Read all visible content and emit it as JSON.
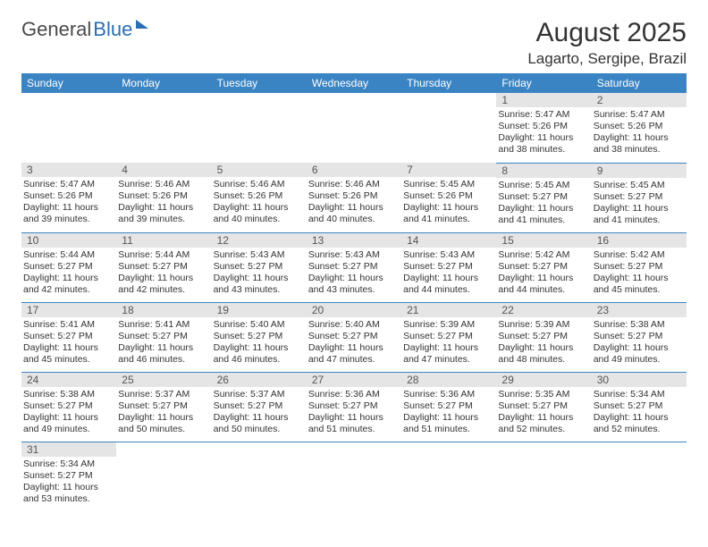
{
  "logo": {
    "text_dark": "General",
    "text_blue": "Blue"
  },
  "header": {
    "month_title": "August 2025",
    "location": "Lagarto, Sergipe, Brazil"
  },
  "colors": {
    "header_bg": "#3b84c4",
    "header_text": "#ffffff",
    "daynum_bg": "#e5e5e5",
    "divider": "#3b84c4",
    "logo_blue": "#2a6fb5",
    "text": "#333333",
    "page_bg": "#ffffff"
  },
  "typography": {
    "month_title_fontsize": 30,
    "location_fontsize": 17,
    "weekday_fontsize": 12,
    "daynum_fontsize": 12,
    "body_fontsize": 10.5
  },
  "weekdays": [
    "Sunday",
    "Monday",
    "Tuesday",
    "Wednesday",
    "Thursday",
    "Friday",
    "Saturday"
  ],
  "weeks": [
    [
      null,
      null,
      null,
      null,
      null,
      {
        "day": "1",
        "sunrise": "Sunrise: 5:47 AM",
        "sunset": "Sunset: 5:26 PM",
        "daylight": "Daylight: 11 hours and 38 minutes."
      },
      {
        "day": "2",
        "sunrise": "Sunrise: 5:47 AM",
        "sunset": "Sunset: 5:26 PM",
        "daylight": "Daylight: 11 hours and 38 minutes."
      }
    ],
    [
      {
        "day": "3",
        "sunrise": "Sunrise: 5:47 AM",
        "sunset": "Sunset: 5:26 PM",
        "daylight": "Daylight: 11 hours and 39 minutes."
      },
      {
        "day": "4",
        "sunrise": "Sunrise: 5:46 AM",
        "sunset": "Sunset: 5:26 PM",
        "daylight": "Daylight: 11 hours and 39 minutes."
      },
      {
        "day": "5",
        "sunrise": "Sunrise: 5:46 AM",
        "sunset": "Sunset: 5:26 PM",
        "daylight": "Daylight: 11 hours and 40 minutes."
      },
      {
        "day": "6",
        "sunrise": "Sunrise: 5:46 AM",
        "sunset": "Sunset: 5:26 PM",
        "daylight": "Daylight: 11 hours and 40 minutes."
      },
      {
        "day": "7",
        "sunrise": "Sunrise: 5:45 AM",
        "sunset": "Sunset: 5:26 PM",
        "daylight": "Daylight: 11 hours and 41 minutes."
      },
      {
        "day": "8",
        "sunrise": "Sunrise: 5:45 AM",
        "sunset": "Sunset: 5:27 PM",
        "daylight": "Daylight: 11 hours and 41 minutes."
      },
      {
        "day": "9",
        "sunrise": "Sunrise: 5:45 AM",
        "sunset": "Sunset: 5:27 PM",
        "daylight": "Daylight: 11 hours and 41 minutes."
      }
    ],
    [
      {
        "day": "10",
        "sunrise": "Sunrise: 5:44 AM",
        "sunset": "Sunset: 5:27 PM",
        "daylight": "Daylight: 11 hours and 42 minutes."
      },
      {
        "day": "11",
        "sunrise": "Sunrise: 5:44 AM",
        "sunset": "Sunset: 5:27 PM",
        "daylight": "Daylight: 11 hours and 42 minutes."
      },
      {
        "day": "12",
        "sunrise": "Sunrise: 5:43 AM",
        "sunset": "Sunset: 5:27 PM",
        "daylight": "Daylight: 11 hours and 43 minutes."
      },
      {
        "day": "13",
        "sunrise": "Sunrise: 5:43 AM",
        "sunset": "Sunset: 5:27 PM",
        "daylight": "Daylight: 11 hours and 43 minutes."
      },
      {
        "day": "14",
        "sunrise": "Sunrise: 5:43 AM",
        "sunset": "Sunset: 5:27 PM",
        "daylight": "Daylight: 11 hours and 44 minutes."
      },
      {
        "day": "15",
        "sunrise": "Sunrise: 5:42 AM",
        "sunset": "Sunset: 5:27 PM",
        "daylight": "Daylight: 11 hours and 44 minutes."
      },
      {
        "day": "16",
        "sunrise": "Sunrise: 5:42 AM",
        "sunset": "Sunset: 5:27 PM",
        "daylight": "Daylight: 11 hours and 45 minutes."
      }
    ],
    [
      {
        "day": "17",
        "sunrise": "Sunrise: 5:41 AM",
        "sunset": "Sunset: 5:27 PM",
        "daylight": "Daylight: 11 hours and 45 minutes."
      },
      {
        "day": "18",
        "sunrise": "Sunrise: 5:41 AM",
        "sunset": "Sunset: 5:27 PM",
        "daylight": "Daylight: 11 hours and 46 minutes."
      },
      {
        "day": "19",
        "sunrise": "Sunrise: 5:40 AM",
        "sunset": "Sunset: 5:27 PM",
        "daylight": "Daylight: 11 hours and 46 minutes."
      },
      {
        "day": "20",
        "sunrise": "Sunrise: 5:40 AM",
        "sunset": "Sunset: 5:27 PM",
        "daylight": "Daylight: 11 hours and 47 minutes."
      },
      {
        "day": "21",
        "sunrise": "Sunrise: 5:39 AM",
        "sunset": "Sunset: 5:27 PM",
        "daylight": "Daylight: 11 hours and 47 minutes."
      },
      {
        "day": "22",
        "sunrise": "Sunrise: 5:39 AM",
        "sunset": "Sunset: 5:27 PM",
        "daylight": "Daylight: 11 hours and 48 minutes."
      },
      {
        "day": "23",
        "sunrise": "Sunrise: 5:38 AM",
        "sunset": "Sunset: 5:27 PM",
        "daylight": "Daylight: 11 hours and 49 minutes."
      }
    ],
    [
      {
        "day": "24",
        "sunrise": "Sunrise: 5:38 AM",
        "sunset": "Sunset: 5:27 PM",
        "daylight": "Daylight: 11 hours and 49 minutes."
      },
      {
        "day": "25",
        "sunrise": "Sunrise: 5:37 AM",
        "sunset": "Sunset: 5:27 PM",
        "daylight": "Daylight: 11 hours and 50 minutes."
      },
      {
        "day": "26",
        "sunrise": "Sunrise: 5:37 AM",
        "sunset": "Sunset: 5:27 PM",
        "daylight": "Daylight: 11 hours and 50 minutes."
      },
      {
        "day": "27",
        "sunrise": "Sunrise: 5:36 AM",
        "sunset": "Sunset: 5:27 PM",
        "daylight": "Daylight: 11 hours and 51 minutes."
      },
      {
        "day": "28",
        "sunrise": "Sunrise: 5:36 AM",
        "sunset": "Sunset: 5:27 PM",
        "daylight": "Daylight: 11 hours and 51 minutes."
      },
      {
        "day": "29",
        "sunrise": "Sunrise: 5:35 AM",
        "sunset": "Sunset: 5:27 PM",
        "daylight": "Daylight: 11 hours and 52 minutes."
      },
      {
        "day": "30",
        "sunrise": "Sunrise: 5:34 AM",
        "sunset": "Sunset: 5:27 PM",
        "daylight": "Daylight: 11 hours and 52 minutes."
      }
    ],
    [
      {
        "day": "31",
        "sunrise": "Sunrise: 5:34 AM",
        "sunset": "Sunset: 5:27 PM",
        "daylight": "Daylight: 11 hours and 53 minutes."
      },
      null,
      null,
      null,
      null,
      null,
      null
    ]
  ]
}
